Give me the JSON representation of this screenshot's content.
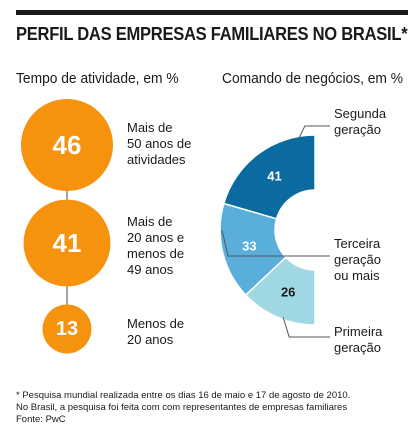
{
  "title": "PERFIL DAS EMPRESAS FAMILIARES NO BRASIL*",
  "chart_data": [
    {
      "type": "bubble",
      "title": "Tempo de atividade, em %",
      "color": "#f5930f",
      "items": [
        {
          "value": 46,
          "label_lines": [
            "Mais de",
            "50 anos de",
            "atividades"
          ]
        },
        {
          "value": 41,
          "label_lines": [
            "Mais de",
            "20 anos e",
            "menos de",
            "49 anos"
          ]
        },
        {
          "value": 13,
          "label_lines": [
            "Menos de",
            "20 anos"
          ]
        }
      ]
    },
    {
      "type": "pie",
      "variant": "half-donut",
      "title": "Comando de negócios, em %",
      "slices": [
        {
          "value": 41,
          "color": "#0b6aa0",
          "label_lines": [
            "Segunda",
            "geração"
          ]
        },
        {
          "value": 33,
          "color": "#5aaedb",
          "label_lines": [
            "Terceira",
            "geração",
            "ou mais"
          ]
        },
        {
          "value": 26,
          "color": "#9fd8e3",
          "label_lines": [
            "Primeira",
            "geração"
          ]
        }
      ]
    }
  ],
  "footnote": [
    "* Pesquisa mundial realizada entre os dias 16 de maio e 17 de agosto de 2010.",
    "No Brasil, a pesquisa foi feita com com representantes de empresas familiares",
    "Fonte: PwC"
  ]
}
